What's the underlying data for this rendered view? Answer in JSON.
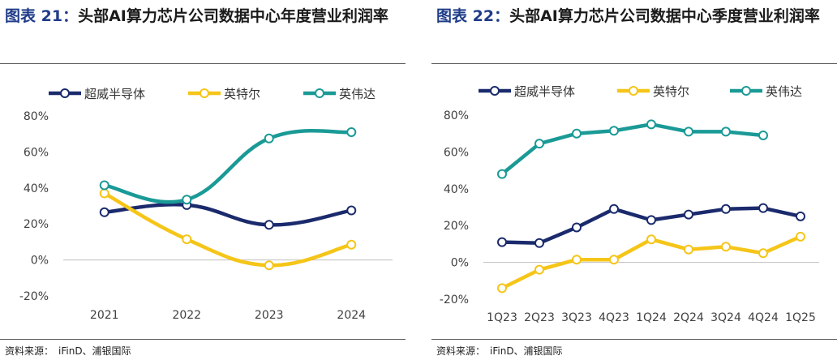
{
  "figures": [
    {
      "figure_label": "图表",
      "figure_number": "21：",
      "title": "头部AI算力芯片公司数据中心年度营业利润率",
      "source_label": "资料来源：",
      "source_text": "iFinD、浦银国际"
    },
    {
      "figure_label": "图表",
      "figure_number": "22：",
      "title": "头部AI算力芯片公司数据中心季度营业利润率",
      "source_label": "资料来源：",
      "source_text": "iFinD、浦银国际"
    }
  ],
  "chart_data": [
    {
      "type": "line",
      "title": "图表 21：头部AI算力芯片公司数据中心年度营业利润率",
      "xlabel": "",
      "ylabel": "",
      "categories": [
        "2021",
        "2022",
        "2023",
        "2024"
      ],
      "y_ticks": [
        "80%",
        "60%",
        "40%",
        "20%",
        "0%",
        "-20%"
      ],
      "ylim": [
        -20,
        80
      ],
      "smooth": true,
      "legend_position": "top",
      "grid": false,
      "series": [
        {
          "name": "超威半导体",
          "color": "#1a2a6c",
          "values": [
            26.5,
            30.5,
            19.5,
            27.5
          ]
        },
        {
          "name": "英特尔",
          "color": "#f5c518",
          "values": [
            37,
            11.5,
            -3,
            8.5
          ]
        },
        {
          "name": "英伟达",
          "color": "#1a9a96",
          "values": [
            41.5,
            33.5,
            67.5,
            71
          ]
        }
      ]
    },
    {
      "type": "line",
      "title": "图表 22：头部AI算力芯片公司数据中心季度营业利润率",
      "xlabel": "",
      "ylabel": "",
      "categories": [
        "1Q23",
        "2Q23",
        "3Q23",
        "4Q23",
        "1Q24",
        "2Q24",
        "3Q24",
        "4Q24",
        "1Q25"
      ],
      "y_ticks": [
        "80%",
        "60%",
        "40%",
        "20%",
        "0%",
        "-20%"
      ],
      "ylim": [
        -20,
        80
      ],
      "smooth": false,
      "legend_position": "top",
      "grid": false,
      "series": [
        {
          "name": "超威半导体",
          "color": "#1a2a6c",
          "values": [
            11,
            10.5,
            19,
            29,
            23,
            26,
            29,
            29.5,
            25
          ]
        },
        {
          "name": "英特尔",
          "color": "#f5c518",
          "values": [
            -14,
            -4,
            1.5,
            1.5,
            12.5,
            7,
            8.5,
            5,
            14
          ]
        },
        {
          "name": "英伟达",
          "color": "#1a9a96",
          "values": [
            48,
            64.5,
            70,
            71.5,
            75,
            71,
            71,
            69,
            null
          ]
        }
      ]
    }
  ]
}
